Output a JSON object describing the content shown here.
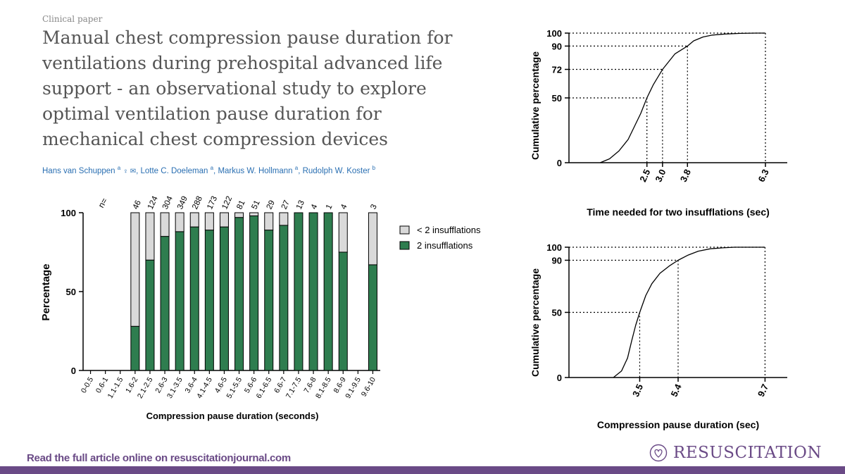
{
  "paper": {
    "kicker": "Clinical paper",
    "title": "Manual chest compression pause duration for ventilations during prehospital advanced life support - an observational study to explore optimal ventilation pause duration for mechanical chest compression devices",
    "authors": [
      {
        "name": "Hans van Schuppen",
        "aff": "a",
        "icons": "♀ ✉"
      },
      {
        "name": "Lotte C. Doeleman",
        "aff": "a"
      },
      {
        "name": "Markus W. Hollmann",
        "aff": "a"
      },
      {
        "name": "Rudolph W. Koster",
        "aff": "b"
      }
    ]
  },
  "footer": {
    "link_text": "Read the full article online on resuscitationjournal.com",
    "brand": "RESUSCITATION"
  },
  "colors": {
    "green": "#2e7d4f",
    "grey": "#d9d9d9",
    "purple": "#6a4a86",
    "link": "#2a6fb2"
  },
  "chart_data": [
    {
      "type": "bar",
      "stacked": true,
      "title": "",
      "xlabel": "Compression pause duration (seconds)",
      "ylabel": "Percentage",
      "ylim": [
        0,
        100
      ],
      "yticks": [
        0,
        50,
        100
      ],
      "n_prefix": "n=",
      "categories": [
        "0-0.5",
        "0.6-1",
        "1.1-1.5",
        "1.6-2",
        "2.1-2.5",
        "2.6-3",
        "3.1-3.5",
        "3.6-4",
        "4.1-4.5",
        "4.6-5",
        "5.1-5.5",
        "5.6-6",
        "6.1-6.5",
        "6.6-7",
        "7.1-7.5",
        "7.6-8",
        "8.1-8.5",
        "8.6-9",
        "9.1-9.5",
        "9.6-10"
      ],
      "n": [
        "",
        "",
        "",
        "46",
        "124",
        "304",
        "349",
        "288",
        "173",
        "122",
        "81",
        "51",
        "29",
        "27",
        "13",
        "4",
        "1",
        "4",
        "",
        "3"
      ],
      "series": [
        {
          "name": "2 insufflations",
          "values": [
            null,
            null,
            null,
            28,
            70,
            85,
            88,
            91,
            89,
            91,
            97,
            98,
            89,
            92,
            100,
            100,
            100,
            75,
            null,
            67
          ]
        },
        {
          "name": "< 2 insufflations",
          "values": [
            null,
            null,
            null,
            72,
            30,
            15,
            12,
            9,
            11,
            9,
            3,
            2,
            11,
            8,
            0,
            0,
            0,
            25,
            null,
            33
          ]
        }
      ],
      "legend": [
        {
          "label": "< 2 insufflations",
          "color": "#d9d9d9"
        },
        {
          "label": "2 insufflations",
          "color": "#2e7d4f"
        }
      ],
      "legend_position": "right"
    },
    {
      "type": "line",
      "title": "",
      "xlabel": "Time needed for two insufflations (sec)",
      "ylabel": "Cumulative percentage",
      "xlim": [
        0,
        7
      ],
      "ylim": [
        0,
        100
      ],
      "yticks": [
        0,
        50,
        72,
        90,
        100
      ],
      "xticks": [
        "2.5",
        "3.0",
        "3.8",
        "6.3"
      ],
      "x": [
        1.0,
        1.3,
        1.6,
        1.9,
        2.1,
        2.3,
        2.5,
        2.7,
        2.9,
        3.0,
        3.2,
        3.4,
        3.6,
        3.8,
        4.0,
        4.3,
        4.6,
        5.0,
        5.5,
        6.0,
        6.3
      ],
      "y": [
        0,
        3,
        9,
        18,
        28,
        38,
        50,
        60,
        68,
        72,
        78,
        84,
        87,
        90,
        94,
        97,
        98.5,
        99.3,
        99.8,
        100,
        100
      ],
      "reference_lines": [
        {
          "x": 2.5,
          "y": 50
        },
        {
          "x": 3.0,
          "y": 72
        },
        {
          "x": 3.8,
          "y": 90
        },
        {
          "x": 6.3,
          "y": 100
        }
      ]
    },
    {
      "type": "line",
      "title": "",
      "xlabel": "Compression pause duration (sec)",
      "ylabel": "Cumulative percentage",
      "xlim": [
        0,
        10.8
      ],
      "ylim": [
        0,
        100
      ],
      "yticks": [
        0,
        50,
        90,
        100
      ],
      "xticks": [
        "3.5",
        "5.4",
        "9.7"
      ],
      "x": [
        2.2,
        2.6,
        2.9,
        3.1,
        3.3,
        3.5,
        3.8,
        4.1,
        4.5,
        5.0,
        5.4,
        5.9,
        6.4,
        7.0,
        7.6,
        8.2,
        9.0,
        9.7
      ],
      "y": [
        0,
        5,
        15,
        28,
        40,
        50,
        63,
        72,
        80,
        86,
        90,
        94,
        97,
        98.8,
        99.5,
        100,
        100,
        100
      ],
      "reference_lines": [
        {
          "x": 3.5,
          "y": 50
        },
        {
          "x": 5.4,
          "y": 90
        },
        {
          "x": 9.7,
          "y": 100
        }
      ]
    }
  ]
}
